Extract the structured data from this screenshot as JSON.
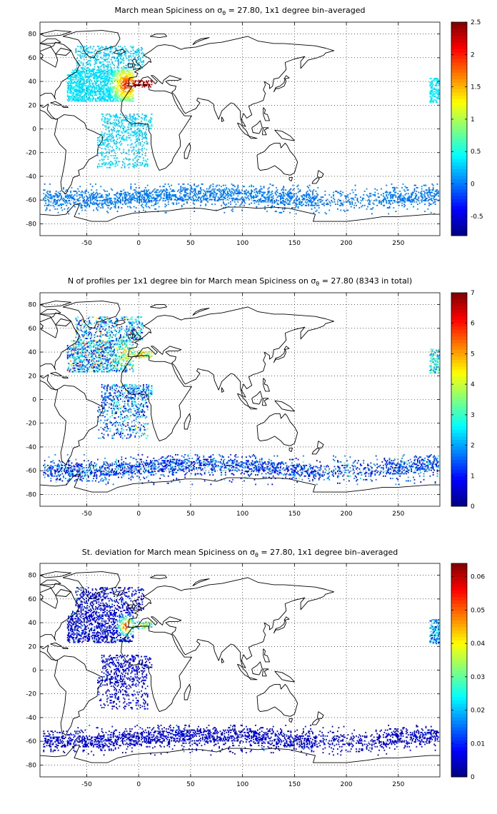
{
  "panels": [
    {
      "title_prefix": "March mean Spiciness on ",
      "title_sigma": "σ",
      "title_sub": "θ",
      "title_suffix": " = 27.80, 1x1 degree bin–averaged",
      "colorbar": {
        "min": -0.8,
        "max": 2.5,
        "ticks": [
          -0.5,
          0,
          0.5,
          1,
          1.5,
          2,
          2.5
        ],
        "tick_labels": [
          "-0.5",
          "0",
          "0.5",
          "1",
          "1.5",
          "2",
          "2.5"
        ]
      },
      "profile": "spice"
    },
    {
      "title_prefix": "N of profiles per 1x1 degree bin for March mean Spiciness on ",
      "title_sigma": "σ",
      "title_sub": "θ",
      "title_suffix": " = 27.80 (8343 in total)",
      "colorbar": {
        "min": 0,
        "max": 7,
        "ticks": [
          0,
          1,
          2,
          3,
          4,
          5,
          6,
          7
        ],
        "tick_labels": [
          "0",
          "1",
          "2",
          "3",
          "4",
          "5",
          "6",
          "7"
        ]
      },
      "profile": "count"
    },
    {
      "title_prefix": "St. deviation for March mean Spiciness on ",
      "title_sigma": "σ",
      "title_sub": "θ",
      "title_suffix": " = 27.80, 1x1 degree bin–averaged",
      "colorbar": {
        "min": 0,
        "max": 0.064,
        "ticks": [
          0,
          0.01,
          0.02,
          0.03,
          0.04,
          0.05,
          0.06
        ],
        "tick_labels": [
          "0",
          "0.01",
          "0.02",
          "0.03",
          "0.04",
          "0.05",
          "0.06"
        ]
      },
      "profile": "std"
    }
  ],
  "map_axes": {
    "xlim": [
      -95,
      290
    ],
    "ylim": [
      -90,
      90
    ],
    "x_ticks": [
      -50,
      0,
      50,
      100,
      150,
      200,
      250
    ],
    "x_tick_labels": [
      "-50",
      "0",
      "50",
      "100",
      "150",
      "200",
      "250"
    ],
    "y_ticks": [
      -80,
      -60,
      -40,
      -20,
      0,
      20,
      40,
      60,
      80
    ],
    "y_tick_labels": [
      "-80",
      "-60",
      "-40",
      "-20",
      "0",
      "20",
      "40",
      "60",
      "80"
    ],
    "grid": true,
    "grid_style": "dotted"
  },
  "colormap": "jet",
  "colors": {
    "land_outline": "#000000",
    "background": "#ffffff"
  }
}
